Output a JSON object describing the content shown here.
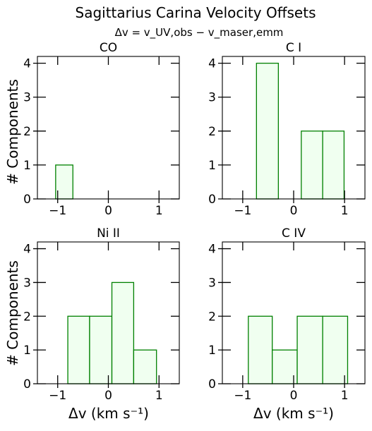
{
  "figure": {
    "title": "Sagittarius Carina Velocity Offsets",
    "subtitle": "Δv = v_UV,obs − v_maser,emm",
    "xlabel": "Δv (km s⁻¹)",
    "ylabel": "# Components"
  },
  "colors": {
    "bar_edge": "#008000",
    "bar_fill": "#f0fff0"
  },
  "chart_data": [
    {
      "type": "bar",
      "title": "CO",
      "xlim": [
        -1.4,
        1.4
      ],
      "ylim": [
        0,
        4.2
      ],
      "xticks": [
        -1,
        0,
        1
      ],
      "yticks": [
        0,
        1,
        2,
        3,
        4
      ],
      "bins": [
        {
          "x0": -1.04,
          "x1": -0.7,
          "count": 1
        }
      ]
    },
    {
      "type": "bar",
      "title": "C I",
      "xlim": [
        -1.4,
        1.4
      ],
      "ylim": [
        0,
        4.2
      ],
      "xticks": [
        -1,
        0,
        1
      ],
      "yticks": [
        0,
        1,
        2,
        3,
        4
      ],
      "bins": [
        {
          "x0": -0.73,
          "x1": -0.3,
          "count": 4
        },
        {
          "x0": 0.15,
          "x1": 0.57,
          "count": 2
        },
        {
          "x0": 0.57,
          "x1": 0.99,
          "count": 2
        }
      ]
    },
    {
      "type": "bar",
      "title": "Ni II",
      "xlim": [
        -1.4,
        1.4
      ],
      "ylim": [
        0,
        4.2
      ],
      "xticks": [
        -1,
        0,
        1
      ],
      "yticks": [
        0,
        1,
        2,
        3,
        4
      ],
      "bins": [
        {
          "x0": -0.8,
          "x1": -0.37,
          "count": 2
        },
        {
          "x0": -0.37,
          "x1": 0.07,
          "count": 2
        },
        {
          "x0": 0.07,
          "x1": 0.5,
          "count": 3
        },
        {
          "x0": 0.5,
          "x1": 0.95,
          "count": 1
        }
      ]
    },
    {
      "type": "bar",
      "title": "C IV",
      "xlim": [
        -1.4,
        1.4
      ],
      "ylim": [
        0,
        4.2
      ],
      "xticks": [
        -1,
        0,
        1
      ],
      "yticks": [
        0,
        1,
        2,
        3,
        4
      ],
      "bins": [
        {
          "x0": -0.89,
          "x1": -0.42,
          "count": 2
        },
        {
          "x0": -0.42,
          "x1": 0.07,
          "count": 1
        },
        {
          "x0": 0.07,
          "x1": 0.57,
          "count": 2
        },
        {
          "x0": 0.57,
          "x1": 1.06,
          "count": 2
        }
      ]
    }
  ]
}
